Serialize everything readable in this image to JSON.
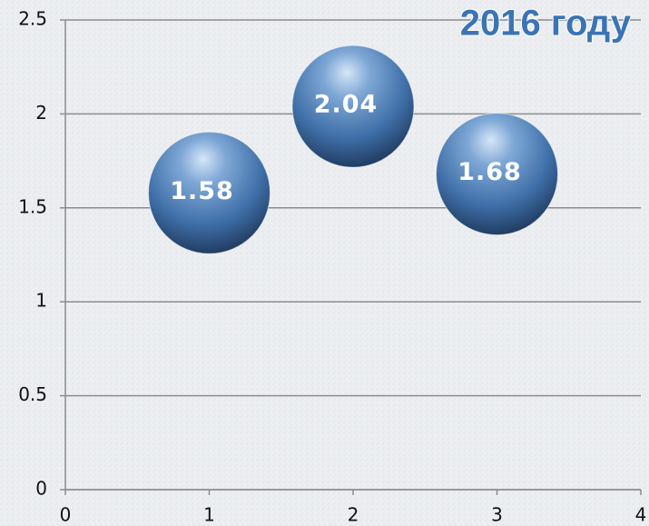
{
  "chart_data": {
    "type": "scatter",
    "title": "2016 году",
    "x": [
      1,
      2,
      3
    ],
    "values": [
      1.58,
      2.04,
      1.68
    ],
    "color": "#3f6fa8",
    "xlim": [
      0,
      4
    ],
    "xticks": [
      0,
      1,
      2,
      3,
      4
    ],
    "ylim": [
      0,
      2.5
    ],
    "yticks": [
      0,
      0.5,
      1,
      1.5,
      2,
      2.5
    ],
    "grid": true
  }
}
